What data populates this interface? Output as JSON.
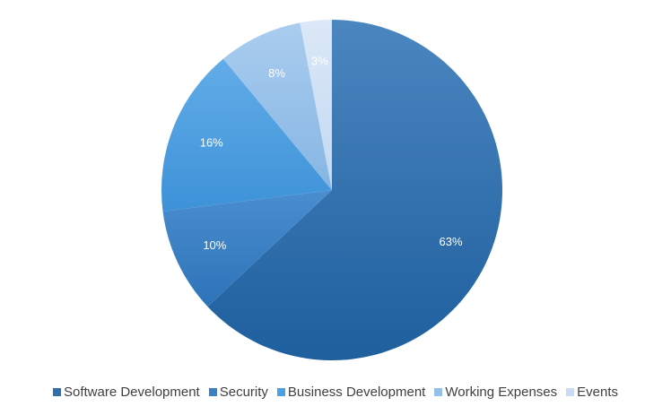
{
  "chart_data": {
    "type": "pie",
    "title": "",
    "legend_position": "bottom",
    "slices": [
      {
        "label": "Software Development",
        "value": 63,
        "data_label": "63%",
        "color": "#2f6fae"
      },
      {
        "label": "Security",
        "value": 10,
        "data_label": "10%",
        "color": "#3a80c4"
      },
      {
        "label": "Business Development",
        "value": 16,
        "data_label": "16%",
        "color": "#4da0e2"
      },
      {
        "label": "Working Expenses",
        "value": 8,
        "data_label": "8%",
        "color": "#93bfe9"
      },
      {
        "label": "Events",
        "value": 3,
        "data_label": "3%",
        "color": "#c9dcf3"
      }
    ]
  }
}
